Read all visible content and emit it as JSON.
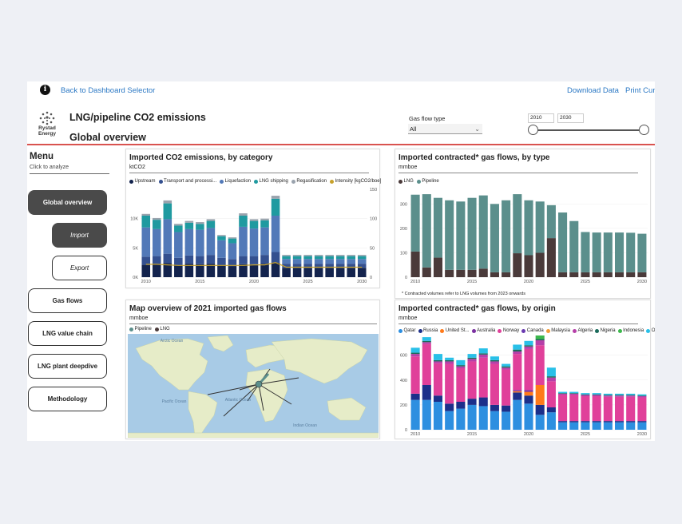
{
  "top_bar": {
    "info_icon": "i",
    "back_link": "Back to Dashboard Selector",
    "download_link": "Download Data",
    "print_link": "Print Curr"
  },
  "header": {
    "title": "LNG/pipeline CO2 emissions",
    "subtitle": "Global overview",
    "logo_text": "Rystad Energy"
  },
  "filters": {
    "gas_flow_label": "Gas flow type",
    "gas_flow_value": "All",
    "year_start": "2010",
    "year_end": "2030",
    "slider_start_frac": 0,
    "slider_end_frac": 1
  },
  "menu": {
    "title": "Menu",
    "subtitle": "Click to analyze",
    "items": [
      {
        "label": "Global overview"
      },
      {
        "label": "Import"
      },
      {
        "label": "Export"
      },
      {
        "label": "Gas flows"
      },
      {
        "label": "LNG value chain"
      },
      {
        "label": "LNG plant deepdive"
      },
      {
        "label": "Methodology"
      }
    ]
  },
  "colors": {
    "accent_red": "#d9534f",
    "upstream": "#13234d",
    "transport": "#34508f",
    "liquefaction": "#5279b8",
    "lng_shipping": "#1f9aa0",
    "regasification": "#9aa3ad",
    "intensity": "#c7a12b",
    "lng": "#4a3a3a",
    "pipeline": "#5b8f8c",
    "map_water": "#a8cbe6",
    "map_land": "#e6ecc8"
  },
  "panels": {
    "emissions": {
      "title": "Imported CO2 emissions, by category",
      "unit": "ktCO2"
    },
    "contracted_type": {
      "title": "Imported contracted* gas flows, by type",
      "unit": "mmboe",
      "footnote": "* Contracted volumes refer to LNG volumes from 2023 onwards"
    },
    "map": {
      "title": "Map overview of 2021 imported gas flows",
      "unit": "mmboe",
      "legend": [
        {
          "name": "Pipeline",
          "color": "#5b8f8c"
        },
        {
          "name": "LNG",
          "color": "#4a3a3a"
        }
      ],
      "labels": {
        "arctic": "Arctic\nOcean",
        "atlantic": "Atlantic\nOcean",
        "pacific": "Pacific\nOcean",
        "indian": "Indian\nOcean"
      }
    },
    "contracted_origin": {
      "title": "Imported contracted* gas flows, by origin",
      "unit": "mmboe"
    }
  },
  "chart_data": [
    {
      "id": "emissions",
      "type": "bar",
      "title": "Imported CO2 emissions, by category",
      "ylabel": "ktCO2",
      "x": [
        2010,
        2011,
        2012,
        2013,
        2014,
        2015,
        2016,
        2017,
        2018,
        2019,
        2020,
        2021,
        2022,
        2023,
        2024,
        2025,
        2026,
        2027,
        2028,
        2029,
        2030
      ],
      "x_ticks": [
        "2010",
        "2015",
        "2020",
        "2025",
        "2030"
      ],
      "y_ticks": [
        "0K",
        "5K",
        "10K"
      ],
      "ylim": [
        0,
        15000
      ],
      "y2_ticks": [
        "0",
        "50",
        "100",
        "150"
      ],
      "y2lim": [
        0,
        150
      ],
      "series": [
        {
          "name": "Upstream",
          "color": "#13234d",
          "values": [
            2100,
            2200,
            2400,
            2000,
            2300,
            2200,
            2300,
            2000,
            1900,
            2200,
            2200,
            2300,
            2500,
            1600,
            1600,
            1600,
            1600,
            1600,
            1600,
            1600,
            1600
          ]
        },
        {
          "name": "Transport and processi...",
          "color": "#34508f",
          "values": [
            1400,
            1400,
            1600,
            1300,
            1400,
            1400,
            1500,
            1300,
            1200,
            1400,
            1400,
            1500,
            1800,
            700,
            700,
            700,
            700,
            700,
            700,
            700,
            700
          ]
        },
        {
          "name": "Liquefaction",
          "color": "#5279b8",
          "values": [
            5000,
            4600,
            5900,
            4400,
            4500,
            4500,
            4600,
            3000,
            2700,
            5000,
            4700,
            4700,
            6200,
            800,
            800,
            800,
            800,
            800,
            800,
            800,
            800
          ]
        },
        {
          "name": "LNG shipping",
          "color": "#1f9aa0",
          "values": [
            2000,
            1600,
            2700,
            1100,
            1100,
            1000,
            1200,
            700,
            800,
            1900,
            1300,
            1200,
            2900,
            500,
            500,
            500,
            500,
            500,
            500,
            500,
            500
          ]
        },
        {
          "name": "Regasification",
          "color": "#9aa3ad",
          "values": [
            300,
            300,
            500,
            300,
            300,
            300,
            300,
            200,
            200,
            400,
            300,
            300,
            500,
            200,
            200,
            200,
            200,
            200,
            200,
            200,
            200
          ]
        }
      ],
      "line": {
        "name": "Intensity [kgCO2/boe]",
        "color": "#c7a12b",
        "values": [
          22,
          22,
          21,
          20,
          20,
          20,
          20,
          20,
          20,
          20,
          21,
          21,
          25,
          17,
          17,
          17,
          17,
          17,
          17,
          17,
          17
        ]
      },
      "legend_position": "top"
    },
    {
      "id": "contracted_type",
      "type": "bar",
      "title": "Imported contracted* gas flows, by type",
      "ylabel": "mmboe",
      "x": [
        2010,
        2011,
        2012,
        2013,
        2014,
        2015,
        2016,
        2017,
        2018,
        2019,
        2020,
        2021,
        2022,
        2023,
        2024,
        2025,
        2026,
        2027,
        2028,
        2029,
        2030
      ],
      "x_ticks": [
        "2010",
        "2015",
        "2020",
        "2025",
        "2030"
      ],
      "y_ticks": [
        "0",
        "100",
        "200",
        "300"
      ],
      "ylim": [
        0,
        360
      ],
      "series": [
        {
          "name": "LNG",
          "color": "#4a3a3a",
          "values": [
            105,
            40,
            80,
            30,
            30,
            30,
            35,
            20,
            20,
            98,
            90,
            100,
            160,
            20,
            20,
            20,
            20,
            20,
            20,
            20,
            20
          ]
        },
        {
          "name": "Pipeline",
          "color": "#5b8f8c",
          "values": [
            233,
            300,
            245,
            285,
            280,
            295,
            300,
            280,
            295,
            242,
            225,
            210,
            135,
            245,
            210,
            165,
            163,
            163,
            163,
            162,
            158
          ]
        }
      ],
      "legend_position": "top"
    },
    {
      "id": "contracted_origin",
      "type": "bar",
      "title": "Imported contracted* gas flows, by origin",
      "ylabel": "mmboe",
      "x": [
        2010,
        2011,
        2012,
        2013,
        2014,
        2015,
        2016,
        2017,
        2018,
        2019,
        2020,
        2021,
        2022,
        2023,
        2024,
        2025,
        2026,
        2027,
        2028,
        2029,
        2030
      ],
      "x_ticks": [
        "2010",
        "2015",
        "2020",
        "2025",
        "2030"
      ],
      "y_ticks": [
        "0",
        "200",
        "400",
        "600"
      ],
      "ylim": [
        0,
        720
      ],
      "series": [
        {
          "name": "Qatar",
          "color": "#2d8fe0",
          "values": [
            240,
            240,
            225,
            150,
            170,
            200,
            190,
            150,
            145,
            240,
            210,
            120,
            140,
            60,
            60,
            60,
            60,
            60,
            60,
            60,
            60
          ]
        },
        {
          "name": "Russia",
          "color": "#1c2f8a",
          "values": [
            50,
            120,
            50,
            60,
            55,
            50,
            70,
            50,
            50,
            60,
            65,
            80,
            40,
            10,
            10,
            10,
            10,
            10,
            10,
            10,
            10
          ]
        },
        {
          "name": "United St...",
          "color": "#ff7a1a",
          "values": [
            0,
            0,
            0,
            0,
            0,
            0,
            0,
            0,
            0,
            10,
            30,
            160,
            0,
            0,
            0,
            0,
            0,
            0,
            0,
            0,
            0
          ]
        },
        {
          "name": "Australia",
          "color": "#7a2fa0",
          "values": [
            0,
            0,
            0,
            0,
            0,
            0,
            0,
            0,
            0,
            10,
            15,
            0,
            0,
            0,
            0,
            0,
            0,
            0,
            0,
            0,
            0
          ]
        },
        {
          "name": "Norway",
          "color": "#e0409a",
          "values": [
            300,
            330,
            260,
            320,
            270,
            300,
            320,
            330,
            290,
            290,
            330,
            320,
            210,
            210,
            210,
            200,
            200,
            195,
            195,
            195,
            190
          ]
        },
        {
          "name": "Canada",
          "color": "#6a3ab0",
          "values": [
            0,
            0,
            0,
            0,
            0,
            0,
            0,
            0,
            0,
            0,
            0,
            0,
            0,
            0,
            0,
            0,
            0,
            0,
            0,
            0,
            0
          ]
        },
        {
          "name": "Malaysia",
          "color": "#f29a36",
          "values": [
            0,
            0,
            0,
            0,
            0,
            0,
            0,
            0,
            0,
            0,
            0,
            0,
            0,
            0,
            0,
            0,
            0,
            0,
            0,
            0,
            0
          ]
        },
        {
          "name": "Algeria",
          "color": "#b63fa8",
          "values": [
            20,
            15,
            15,
            20,
            15,
            20,
            25,
            20,
            15,
            20,
            20,
            40,
            30,
            10,
            10,
            10,
            10,
            10,
            10,
            10,
            10
          ]
        },
        {
          "name": "Nigeria",
          "color": "#1a6a5a",
          "values": [
            10,
            10,
            10,
            10,
            10,
            10,
            10,
            10,
            10,
            15,
            10,
            10,
            10,
            5,
            5,
            5,
            5,
            5,
            5,
            5,
            5
          ]
        },
        {
          "name": "Indonesia",
          "color": "#3cb84c",
          "values": [
            0,
            0,
            0,
            0,
            0,
            0,
            0,
            0,
            0,
            0,
            0,
            30,
            0,
            0,
            0,
            0,
            0,
            0,
            0,
            0,
            0
          ]
        },
        {
          "name": "Other",
          "color": "#29c0e8",
          "values": [
            40,
            30,
            50,
            20,
            40,
            30,
            40,
            30,
            20,
            40,
            35,
            40,
            70,
            10,
            10,
            10,
            10,
            10,
            10,
            10,
            10
          ]
        }
      ],
      "legend_position": "top"
    }
  ]
}
